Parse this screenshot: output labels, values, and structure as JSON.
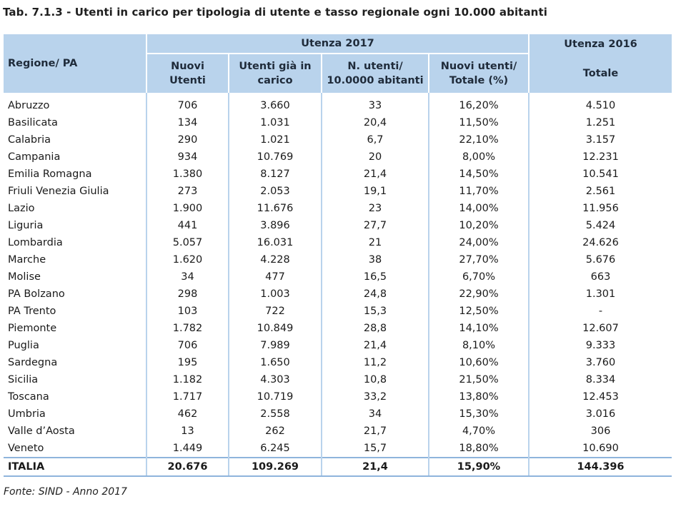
{
  "title": "Tab. 7.1.3 - Utenti in carico per tipologia di utente e tasso regionale ogni 10.000 abitanti",
  "table": {
    "group_2017": "Utenza 2017",
    "group_2016": "Utenza  2016",
    "headers": {
      "region": "Regione/ PA",
      "new_users": [
        "Nuovi",
        "Utenti"
      ],
      "existing_users": [
        "Utenti già in",
        "carico"
      ],
      "rate": [
        "N. utenti/",
        "10.0000 abitanti"
      ],
      "new_share": [
        "Nuovi utenti/",
        "Totale (%)"
      ],
      "total_2016": "Totale"
    },
    "rows": [
      [
        "Abruzzo",
        "706",
        "3.660",
        "33",
        "16,20%",
        "4.510"
      ],
      [
        "Basilicata",
        "134",
        "1.031",
        "20,4",
        "11,50%",
        "1.251"
      ],
      [
        "Calabria",
        "290",
        "1.021",
        "6,7",
        "22,10%",
        "3.157"
      ],
      [
        "Campania",
        "934",
        "10.769",
        "20",
        "8,00%",
        "12.231"
      ],
      [
        "Emilia Romagna",
        "1.380",
        "8.127",
        "21,4",
        "14,50%",
        "10.541"
      ],
      [
        "Friuli Venezia Giulia",
        "273",
        "2.053",
        "19,1",
        "11,70%",
        "2.561"
      ],
      [
        "Lazio",
        "1.900",
        "11.676",
        "23",
        "14,00%",
        "11.956"
      ],
      [
        "Liguria",
        "441",
        "3.896",
        "27,7",
        "10,20%",
        "5.424"
      ],
      [
        "Lombardia",
        "5.057",
        "16.031",
        "21",
        "24,00%",
        "24.626"
      ],
      [
        "Marche",
        "1.620",
        "4.228",
        "38",
        "27,70%",
        "5.676"
      ],
      [
        "Molise",
        "34",
        "477",
        "16,5",
        "6,70%",
        "663"
      ],
      [
        "PA Bolzano",
        "298",
        "1.003",
        "24,8",
        "22,90%",
        "1.301"
      ],
      [
        "PA Trento",
        "103",
        "722",
        "15,3",
        "12,50%",
        "-"
      ],
      [
        "Piemonte",
        "1.782",
        "10.849",
        "28,8",
        "14,10%",
        "12.607"
      ],
      [
        "Puglia",
        "706",
        "7.989",
        "21,4",
        "8,10%",
        "9.333"
      ],
      [
        "Sardegna",
        "195",
        "1.650",
        "11,2",
        "10,60%",
        "3.760"
      ],
      [
        "Sicilia",
        "1.182",
        "4.303",
        "10,8",
        "21,50%",
        "8.334"
      ],
      [
        "Toscana",
        "1.717",
        "10.719",
        "33,2",
        "13,80%",
        "12.453"
      ],
      [
        "Umbria",
        "462",
        "2.558",
        "34",
        "15,30%",
        "3.016"
      ],
      [
        "Valle d’Aosta",
        "13",
        "262",
        "21,7",
        "4,70%",
        "306"
      ],
      [
        "Veneto",
        "1.449",
        "6.245",
        "15,7",
        "18,80%",
        "10.690"
      ]
    ],
    "total": [
      "ITALIA",
      "20.676",
      "109.269",
      "21,4",
      "15,90%",
      "144.396"
    ]
  },
  "source": "Fonte: SIND - Anno 2017"
}
